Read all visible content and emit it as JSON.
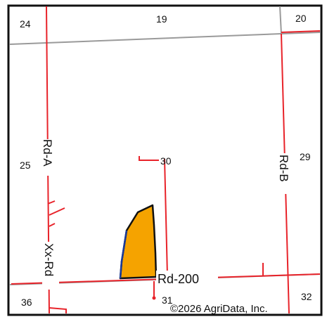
{
  "map": {
    "sections": {
      "s24": "24",
      "s19": "19",
      "s20": "20",
      "s25": "25",
      "s30": "30",
      "s29": "29",
      "s36": "36",
      "s31": "31",
      "s32": "32"
    },
    "roads": {
      "rd_a": "Rd-A",
      "rd_b": "Rd-B",
      "xx_rd": "Xx-Rd",
      "rd_200": "Rd-200"
    },
    "copyright": "©2026 AgriData, Inc.",
    "colors": {
      "road": "#e8232a",
      "section_line": "#9a9a9a",
      "field_fill": "#f5a300",
      "field_outline": "#111111",
      "field_edge_blue": "#1a3a9a",
      "frame": "#111111"
    }
  }
}
